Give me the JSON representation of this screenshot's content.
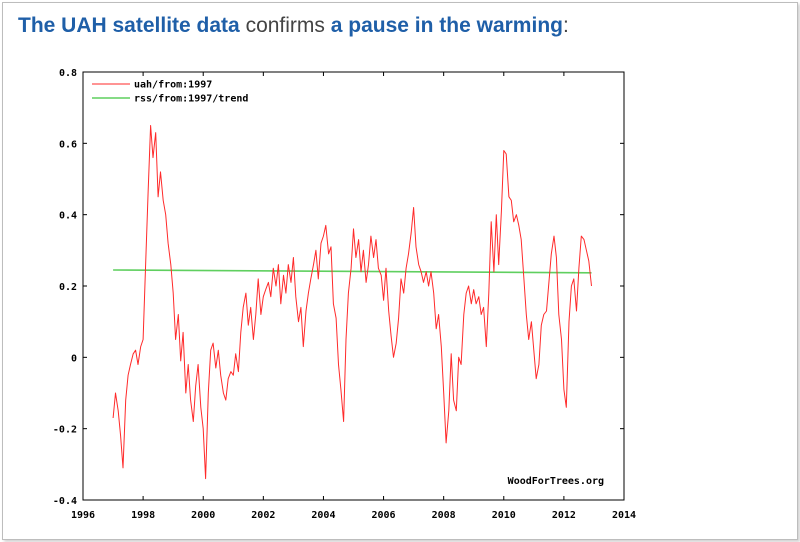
{
  "headline": {
    "part1": "The UAH satellite data",
    "part2": " confirms ",
    "part3": "a pause in the warming",
    "part4": ":"
  },
  "colors": {
    "headline_blue": "#1f5fa8",
    "headline_gray": "#444444",
    "series_uah": "#ff2a2a",
    "series_trend": "#5fcf5f"
  },
  "chart_data": {
    "type": "line",
    "title": "",
    "xlabel": "",
    "ylabel": "",
    "xlim": [
      1996,
      2014
    ],
    "ylim": [
      -0.4,
      0.8
    ],
    "xticks": [
      1996,
      1998,
      2000,
      2002,
      2004,
      2006,
      2008,
      2010,
      2012,
      2014
    ],
    "xtick_labels": [
      "1996",
      "1998",
      "2000",
      "2002",
      "2004",
      "2006",
      "2008",
      "2010",
      "2012",
      "2014"
    ],
    "yticks": [
      -0.4,
      -0.2,
      0,
      0.2,
      0.4,
      0.6,
      0.8
    ],
    "ytick_labels": [
      "-0.4",
      "-0.2",
      "0",
      "0.2",
      "0.4",
      "0.6",
      "0.8"
    ],
    "grid": false,
    "legend_position": "top-left",
    "watermark": "WoodForTrees.org",
    "series": [
      {
        "name": "uah/from:1997",
        "color": "#ff2a2a",
        "points": [
          [
            1997.0,
            -0.17
          ],
          [
            1997.08,
            -0.1
          ],
          [
            1997.17,
            -0.15
          ],
          [
            1997.25,
            -0.22
          ],
          [
            1997.33,
            -0.31
          ],
          [
            1997.42,
            -0.12
          ],
          [
            1997.5,
            -0.05
          ],
          [
            1997.58,
            -0.02
          ],
          [
            1997.67,
            0.01
          ],
          [
            1997.75,
            0.02
          ],
          [
            1997.83,
            -0.02
          ],
          [
            1997.92,
            0.03
          ],
          [
            1998.0,
            0.05
          ],
          [
            1998.08,
            0.25
          ],
          [
            1998.17,
            0.47
          ],
          [
            1998.25,
            0.65
          ],
          [
            1998.33,
            0.56
          ],
          [
            1998.42,
            0.63
          ],
          [
            1998.5,
            0.45
          ],
          [
            1998.58,
            0.52
          ],
          [
            1998.67,
            0.44
          ],
          [
            1998.75,
            0.4
          ],
          [
            1998.83,
            0.32
          ],
          [
            1998.92,
            0.26
          ],
          [
            1999.0,
            0.18
          ],
          [
            1999.08,
            0.05
          ],
          [
            1999.17,
            0.12
          ],
          [
            1999.25,
            -0.01
          ],
          [
            1999.33,
            0.07
          ],
          [
            1999.42,
            -0.1
          ],
          [
            1999.5,
            -0.02
          ],
          [
            1999.58,
            -0.12
          ],
          [
            1999.67,
            -0.18
          ],
          [
            1999.75,
            -0.08
          ],
          [
            1999.83,
            -0.02
          ],
          [
            1999.92,
            -0.14
          ],
          [
            2000.0,
            -0.2
          ],
          [
            2000.08,
            -0.34
          ],
          [
            2000.17,
            -0.1
          ],
          [
            2000.25,
            0.02
          ],
          [
            2000.33,
            0.04
          ],
          [
            2000.42,
            -0.03
          ],
          [
            2000.5,
            0.02
          ],
          [
            2000.58,
            -0.05
          ],
          [
            2000.67,
            -0.1
          ],
          [
            2000.75,
            -0.12
          ],
          [
            2000.83,
            -0.06
          ],
          [
            2000.92,
            -0.04
          ],
          [
            2001.0,
            -0.05
          ],
          [
            2001.08,
            0.01
          ],
          [
            2001.17,
            -0.04
          ],
          [
            2001.25,
            0.07
          ],
          [
            2001.33,
            0.14
          ],
          [
            2001.42,
            0.18
          ],
          [
            2001.5,
            0.09
          ],
          [
            2001.58,
            0.14
          ],
          [
            2001.67,
            0.05
          ],
          [
            2001.75,
            0.12
          ],
          [
            2001.83,
            0.22
          ],
          [
            2001.92,
            0.12
          ],
          [
            2002.0,
            0.17
          ],
          [
            2002.08,
            0.19
          ],
          [
            2002.17,
            0.21
          ],
          [
            2002.25,
            0.17
          ],
          [
            2002.33,
            0.25
          ],
          [
            2002.42,
            0.2
          ],
          [
            2002.5,
            0.26
          ],
          [
            2002.58,
            0.15
          ],
          [
            2002.67,
            0.23
          ],
          [
            2002.75,
            0.18
          ],
          [
            2002.83,
            0.26
          ],
          [
            2002.92,
            0.21
          ],
          [
            2003.0,
            0.28
          ],
          [
            2003.08,
            0.17
          ],
          [
            2003.17,
            0.1
          ],
          [
            2003.25,
            0.14
          ],
          [
            2003.33,
            0.03
          ],
          [
            2003.42,
            0.13
          ],
          [
            2003.5,
            0.18
          ],
          [
            2003.58,
            0.22
          ],
          [
            2003.67,
            0.26
          ],
          [
            2003.75,
            0.3
          ],
          [
            2003.83,
            0.22
          ],
          [
            2003.92,
            0.32
          ],
          [
            2004.0,
            0.34
          ],
          [
            2004.08,
            0.37
          ],
          [
            2004.17,
            0.29
          ],
          [
            2004.25,
            0.31
          ],
          [
            2004.33,
            0.15
          ],
          [
            2004.42,
            0.11
          ],
          [
            2004.5,
            -0.02
          ],
          [
            2004.58,
            -0.09
          ],
          [
            2004.67,
            -0.18
          ],
          [
            2004.75,
            0.05
          ],
          [
            2004.83,
            0.18
          ],
          [
            2004.92,
            0.25
          ],
          [
            2005.0,
            0.36
          ],
          [
            2005.08,
            0.28
          ],
          [
            2005.17,
            0.33
          ],
          [
            2005.25,
            0.24
          ],
          [
            2005.33,
            0.3
          ],
          [
            2005.42,
            0.21
          ],
          [
            2005.5,
            0.26
          ],
          [
            2005.58,
            0.34
          ],
          [
            2005.67,
            0.28
          ],
          [
            2005.75,
            0.33
          ],
          [
            2005.83,
            0.25
          ],
          [
            2005.92,
            0.23
          ],
          [
            2006.0,
            0.16
          ],
          [
            2006.08,
            0.25
          ],
          [
            2006.17,
            0.13
          ],
          [
            2006.25,
            0.06
          ],
          [
            2006.33,
            0.0
          ],
          [
            2006.42,
            0.04
          ],
          [
            2006.5,
            0.11
          ],
          [
            2006.58,
            0.22
          ],
          [
            2006.67,
            0.18
          ],
          [
            2006.75,
            0.25
          ],
          [
            2006.83,
            0.29
          ],
          [
            2006.92,
            0.35
          ],
          [
            2007.0,
            0.42
          ],
          [
            2007.08,
            0.31
          ],
          [
            2007.17,
            0.26
          ],
          [
            2007.25,
            0.24
          ],
          [
            2007.33,
            0.21
          ],
          [
            2007.42,
            0.24
          ],
          [
            2007.5,
            0.2
          ],
          [
            2007.58,
            0.24
          ],
          [
            2007.67,
            0.18
          ],
          [
            2007.75,
            0.08
          ],
          [
            2007.83,
            0.12
          ],
          [
            2007.92,
            0.03
          ],
          [
            2008.0,
            -0.1
          ],
          [
            2008.08,
            -0.24
          ],
          [
            2008.17,
            -0.15
          ],
          [
            2008.25,
            0.01
          ],
          [
            2008.33,
            -0.12
          ],
          [
            2008.42,
            -0.15
          ],
          [
            2008.5,
            0.0
          ],
          [
            2008.58,
            -0.02
          ],
          [
            2008.67,
            0.12
          ],
          [
            2008.75,
            0.18
          ],
          [
            2008.83,
            0.2
          ],
          [
            2008.92,
            0.15
          ],
          [
            2009.0,
            0.19
          ],
          [
            2009.08,
            0.15
          ],
          [
            2009.17,
            0.17
          ],
          [
            2009.25,
            0.12
          ],
          [
            2009.33,
            0.14
          ],
          [
            2009.42,
            0.03
          ],
          [
            2009.5,
            0.18
          ],
          [
            2009.58,
            0.38
          ],
          [
            2009.67,
            0.24
          ],
          [
            2009.75,
            0.4
          ],
          [
            2009.83,
            0.26
          ],
          [
            2009.92,
            0.41
          ],
          [
            2010.0,
            0.58
          ],
          [
            2010.08,
            0.57
          ],
          [
            2010.17,
            0.45
          ],
          [
            2010.25,
            0.44
          ],
          [
            2010.33,
            0.38
          ],
          [
            2010.42,
            0.4
          ],
          [
            2010.5,
            0.37
          ],
          [
            2010.58,
            0.33
          ],
          [
            2010.67,
            0.22
          ],
          [
            2010.75,
            0.12
          ],
          [
            2010.83,
            0.05
          ],
          [
            2010.92,
            0.1
          ],
          [
            2011.0,
            0.02
          ],
          [
            2011.08,
            -0.06
          ],
          [
            2011.17,
            -0.02
          ],
          [
            2011.25,
            0.09
          ],
          [
            2011.33,
            0.12
          ],
          [
            2011.42,
            0.13
          ],
          [
            2011.5,
            0.21
          ],
          [
            2011.58,
            0.29
          ],
          [
            2011.67,
            0.34
          ],
          [
            2011.75,
            0.28
          ],
          [
            2011.83,
            0.12
          ],
          [
            2011.92,
            0.05
          ],
          [
            2012.0,
            -0.09
          ],
          [
            2012.08,
            -0.14
          ],
          [
            2012.17,
            0.1
          ],
          [
            2012.25,
            0.2
          ],
          [
            2012.33,
            0.22
          ],
          [
            2012.42,
            0.13
          ],
          [
            2012.5,
            0.25
          ],
          [
            2012.58,
            0.34
          ],
          [
            2012.67,
            0.33
          ],
          [
            2012.75,
            0.3
          ],
          [
            2012.83,
            0.27
          ],
          [
            2012.92,
            0.2
          ]
        ]
      },
      {
        "name": "rss/from:1997/trend",
        "color": "#5fcf5f",
        "points": [
          [
            1997.0,
            0.245
          ],
          [
            2012.92,
            0.237
          ]
        ]
      }
    ]
  }
}
